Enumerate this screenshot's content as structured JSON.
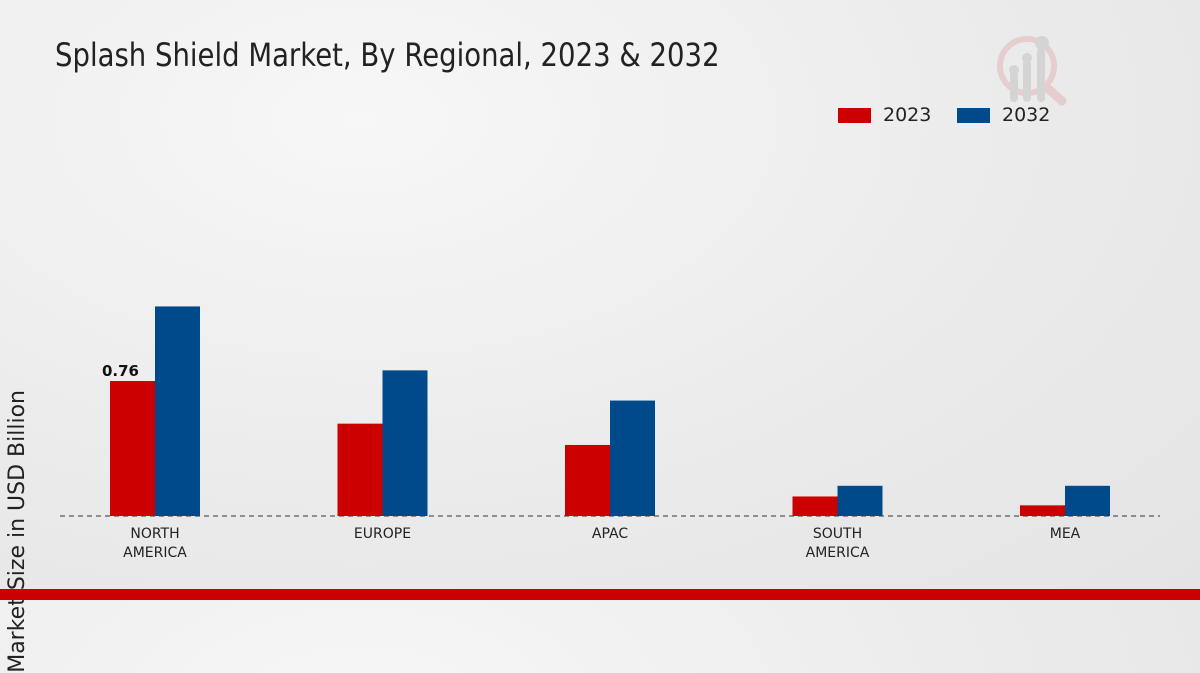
{
  "chart_data": {
    "type": "bar",
    "title": "Splash Shield Market, By Regional, 2023 & 2032",
    "xlabel": "",
    "ylabel": "Market Size in USD Billion",
    "categories": [
      [
        "NORTH",
        "AMERICA"
      ],
      [
        "EUROPE"
      ],
      [
        "APAC"
      ],
      [
        "SOUTH",
        "AMERICA"
      ],
      [
        "MEA"
      ]
    ],
    "series": [
      {
        "name": "2023",
        "color": "#cc0000",
        "values": [
          0.76,
          0.52,
          0.4,
          0.11,
          0.06
        ]
      },
      {
        "name": "2032",
        "color": "#004a8b",
        "values": [
          1.18,
          0.82,
          0.65,
          0.17,
          0.17
        ]
      }
    ],
    "data_labels": [
      {
        "series": 0,
        "index": 0,
        "text": "0.76"
      }
    ],
    "ylim": [
      0,
      1.5
    ],
    "grid": false,
    "legend_placement": "top-right"
  },
  "logo_icon": "magnifier-bar-chart-icon"
}
